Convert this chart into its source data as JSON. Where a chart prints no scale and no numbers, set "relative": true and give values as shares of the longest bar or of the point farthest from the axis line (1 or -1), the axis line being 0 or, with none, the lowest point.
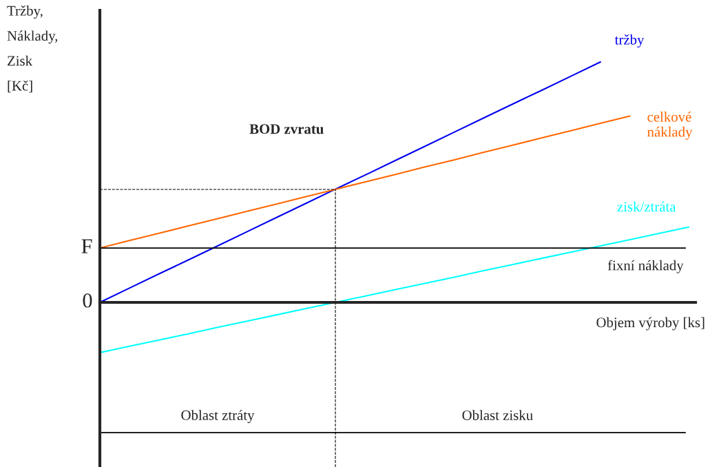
{
  "chart_data": {
    "type": "line",
    "relative": true,
    "ylabel": "Tržby,\nNáklady,\nZisk\n[Kč]",
    "xlabel": "Objem výroby [ks]",
    "categories": [
      null,
      null,
      null,
      null,
      null,
      null,
      null,
      null,
      null,
      null,
      null,
      null,
      null,
      null,
      null,
      null,
      null,
      null,
      null,
      null,
      null
    ],
    "series": [
      {
        "name": "tržby",
        "color": "#0000ee",
        "values": [
          0,
          0.059,
          0.118,
          0.176,
          0.235,
          0.294,
          0.353,
          0.412,
          0.471,
          0.529,
          0.588,
          0.647,
          0.706,
          0.765,
          0.824,
          0.882,
          0.941,
          1,
          null,
          null,
          null
        ]
      },
      {
        "name": "celkové\nnáklady",
        "color": "#ff6600",
        "values": [
          0.226,
          0.257,
          0.287,
          0.318,
          0.348,
          0.379,
          0.409,
          0.44,
          0.47,
          0.501,
          0.531,
          0.562,
          0.592,
          0.623,
          0.653,
          0.684,
          0.714,
          0.745,
          0.775,
          null,
          null
        ]
      },
      {
        "name": "zisk/ztráta",
        "color": "#00ffff",
        "values": [
          -0.209,
          -0.183,
          -0.157,
          -0.131,
          -0.104,
          -0.078,
          -0.052,
          -0.026,
          0,
          0.026,
          0.052,
          0.078,
          0.104,
          0.131,
          0.157,
          0.183,
          0.209,
          0.235,
          0.261,
          0.287,
          0.313
        ]
      }
    ],
    "ref_lines": [
      {
        "axis": "y",
        "value": 0.226,
        "label": "fixní náklady",
        "color": "#000000",
        "line_style": "solid"
      },
      {
        "axis": "y",
        "value": -0.542,
        "color": "#000000",
        "line_style": "solid"
      },
      {
        "axis": "y",
        "value": 0.47,
        "color": "#000000",
        "line_style": "dashed"
      }
    ],
    "annotations": [
      "F",
      "0",
      "BOD zvratu",
      "Oblast ztráty",
      "Oblast zisku"
    ],
    "grid": false,
    "legend": false,
    "marker": "none",
    "line_style": "solid"
  }
}
